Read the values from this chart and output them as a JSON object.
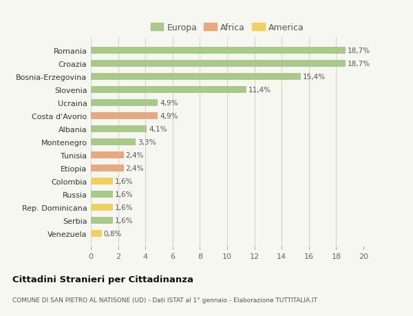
{
  "categories": [
    "Venezuela",
    "Serbia",
    "Rep. Dominicana",
    "Russia",
    "Colombia",
    "Etiopia",
    "Tunisia",
    "Montenegro",
    "Albania",
    "Costa d'Avorio",
    "Ucraina",
    "Slovenia",
    "Bosnia-Erzegovina",
    "Croazia",
    "Romania"
  ],
  "values": [
    0.8,
    1.6,
    1.6,
    1.6,
    1.6,
    2.4,
    2.4,
    3.3,
    4.1,
    4.9,
    4.9,
    11.4,
    15.4,
    18.7,
    18.7
  ],
  "labels": [
    "0,8%",
    "1,6%",
    "1,6%",
    "1,6%",
    "1,6%",
    "2,4%",
    "2,4%",
    "3,3%",
    "4,1%",
    "4,9%",
    "4,9%",
    "11,4%",
    "15,4%",
    "18,7%",
    "18,7%"
  ],
  "continent": [
    "America",
    "Europa",
    "America",
    "Europa",
    "America",
    "Africa",
    "Africa",
    "Europa",
    "Europa",
    "Africa",
    "Europa",
    "Europa",
    "Europa",
    "Europa",
    "Europa"
  ],
  "colors": {
    "Europa": "#a8c98a",
    "Africa": "#e8a882",
    "America": "#f0d060"
  },
  "background_color": "#f7f7f2",
  "title_main": "Cittadini Stranieri per Cittadinanza",
  "title_sub": "COMUNE DI SAN PIETRO AL NATISONE (UD) - Dati ISTAT al 1° gennaio - Elaborazione TUTTITALIA.IT",
  "xlim": [
    0,
    20
  ],
  "xticks": [
    0,
    2,
    4,
    6,
    8,
    10,
    12,
    14,
    16,
    18,
    20
  ],
  "bar_height": 0.55,
  "figsize": [
    6.0,
    4.6
  ],
  "dpi": 100
}
